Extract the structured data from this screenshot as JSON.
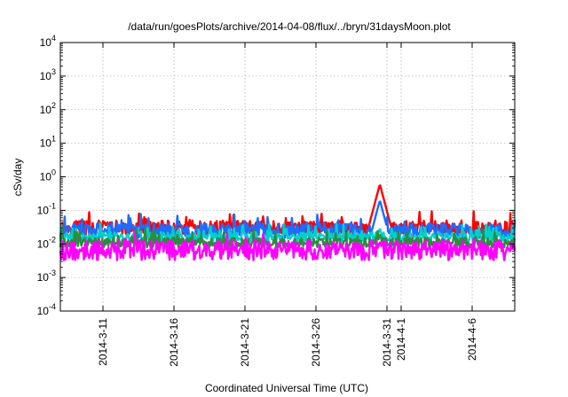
{
  "chart_data": {
    "type": "line",
    "title": "/data/run/goesPlots/archive/2014-04-08/flux/../bryn/31daysMoon.plot",
    "xlabel": "Coordinated Universal Time (UTC)",
    "ylabel": "cSv/day",
    "yscale": "log",
    "ylim": [
      0.0001,
      10000
    ],
    "xlim": [
      "2014-03-08",
      "2014-04-09"
    ],
    "grid": true,
    "y_ticks": [
      {
        "base": "10",
        "exp": "-4",
        "value": 0.0001
      },
      {
        "base": "10",
        "exp": "-3",
        "value": 0.001
      },
      {
        "base": "10",
        "exp": "-2",
        "value": 0.01
      },
      {
        "base": "10",
        "exp": "-1",
        "value": 0.1
      },
      {
        "base": "10",
        "exp": "0",
        "value": 1
      },
      {
        "base": "10",
        "exp": "1",
        "value": 10
      },
      {
        "base": "10",
        "exp": "2",
        "value": 100
      },
      {
        "base": "10",
        "exp": "3",
        "value": 1000
      },
      {
        "base": "10",
        "exp": "4",
        "value": 10000
      }
    ],
    "x_ticks": [
      {
        "label": "2014-3-11",
        "date": "2014-03-11"
      },
      {
        "label": "2014-3-16",
        "date": "2014-03-16"
      },
      {
        "label": "2014-3-21",
        "date": "2014-03-21"
      },
      {
        "label": "2014-3-26",
        "date": "2014-03-26"
      },
      {
        "label": "2014-3-31",
        "date": "2014-03-31"
      },
      {
        "label": "2014-4-1",
        "date": "2014-04-01"
      },
      {
        "label": "2014-4-6",
        "date": "2014-04-06"
      }
    ],
    "series": [
      {
        "color": "#ff0000",
        "base": 0.03,
        "spread": 0.22,
        "seed": 11,
        "peak": {
          "date": "2014-03-30T12:00",
          "value": 0.6
        }
      },
      {
        "color": "#1e6cff",
        "base": 0.025,
        "spread": 0.22,
        "seed": 23,
        "peak": {
          "date": "2014-03-30T12:00",
          "value": 0.2
        }
      },
      {
        "color": "#00d0c8",
        "base": 0.016,
        "spread": 0.14,
        "seed": 37,
        "peak": {
          "date": "2014-03-30T12:00",
          "value": 0.03
        }
      },
      {
        "color": "#2e8b40",
        "base": 0.011,
        "spread": 0.14,
        "seed": 41,
        "peak": {
          "date": "2014-03-30T12:00",
          "value": 0.02
        }
      },
      {
        "color": "#ff00ff",
        "base": 0.0065,
        "spread": 0.3,
        "seed": 53,
        "peak": {
          "date": "2014-03-30T12:00",
          "value": 0.012
        }
      }
    ]
  }
}
